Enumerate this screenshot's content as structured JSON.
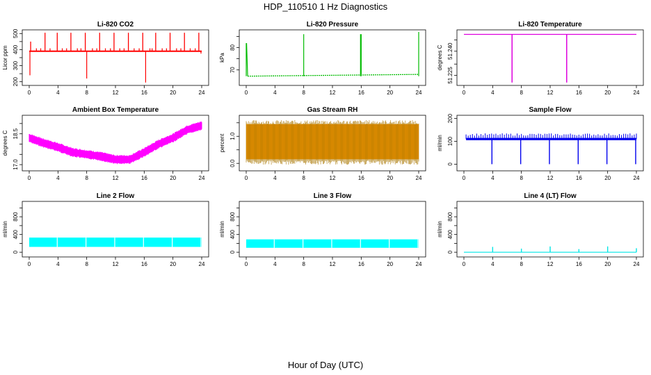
{
  "page": {
    "title": "HDP_110510  1 Hz Diagnostics",
    "xlabel": "Hour of Day (UTC)"
  },
  "chart_data": [
    {
      "type": "line",
      "title": "Li-820 CO2",
      "ylabel": "Licor ppm",
      "color": "#ff0000",
      "xlim": [
        0,
        24
      ],
      "ylim": [
        190,
        510
      ],
      "xticks": [
        0,
        4,
        8,
        12,
        16,
        20,
        24
      ],
      "yticks": [
        200,
        250,
        300,
        350,
        400,
        450,
        500
      ],
      "ytick_labels": [
        "200",
        "",
        "300",
        "",
        "400",
        "",
        "500"
      ],
      "series": [
        {
          "baseline": 390,
          "spikes_up": [
            [
              0.2,
              450
            ],
            [
              2.2,
              505
            ],
            [
              3.9,
              505
            ],
            [
              5.8,
              505
            ],
            [
              7.8,
              505
            ],
            [
              9.8,
              505
            ],
            [
              11.8,
              505
            ],
            [
              13.8,
              505
            ],
            [
              15.8,
              505
            ],
            [
              17.6,
              505
            ],
            [
              19.6,
              505
            ],
            [
              21.6,
              505
            ],
            [
              23.6,
              505
            ]
          ],
          "small_bumps": [
            1.0,
            1.6,
            2.9,
            4.6,
            5.2,
            6.7,
            7.2,
            8.8,
            9.4,
            10.6,
            11.3,
            12.6,
            13.2,
            14.6,
            15.3,
            16.8,
            17.1,
            18.5,
            19.1,
            20.5,
            21.1,
            22.4,
            23.1
          ],
          "dips": [
            [
              0.1,
              240
            ],
            [
              8.0,
              220
            ],
            [
              16.2,
              195
            ],
            [
              23.9,
              375
            ]
          ]
        }
      ]
    },
    {
      "type": "line",
      "title": "Li-820 Pressure",
      "ylabel": "kPa",
      "color": "#00bb00",
      "xlim": [
        0,
        24
      ],
      "ylim": [
        64,
        87
      ],
      "xticks": [
        0,
        4,
        8,
        12,
        16,
        20,
        24
      ],
      "yticks": [
        70,
        75,
        80,
        85
      ],
      "ytick_labels": [
        "70",
        "",
        "80",
        ""
      ],
      "series": [
        {
          "start": [
            0.05,
            82
          ],
          "baseline_start": 67.2,
          "baseline_end": 68.0,
          "spikes": [
            [
              0.0,
              82
            ],
            [
              8.0,
              86
            ],
            [
              15.9,
              86
            ],
            [
              16.0,
              86
            ],
            [
              24.0,
              87
            ]
          ]
        }
      ]
    },
    {
      "type": "line",
      "title": "Li-820 Temperature",
      "ylabel": "degrees C",
      "color": "#dd00dd",
      "xlim": [
        0,
        24
      ],
      "ylim": [
        51.22,
        51.252
      ],
      "xticks": [
        0,
        4,
        8,
        12,
        16,
        20,
        24
      ],
      "yticks": [
        51.225,
        51.232,
        51.24,
        51.247
      ],
      "ytick_labels": [
        "51.225",
        "",
        "51.240",
        ""
      ],
      "series": [
        {
          "baseline": 51.2505,
          "drops": [
            [
              6.7,
              51.2205
            ],
            [
              14.3,
              51.2205
            ]
          ]
        }
      ]
    },
    {
      "type": "area",
      "title": "Ambient Box Temperature",
      "ylabel": "degrees C",
      "color": "#ff00ff",
      "xlim": [
        0,
        24
      ],
      "ylim": [
        16.8,
        19.3
      ],
      "xticks": [
        0,
        4,
        8,
        12,
        16,
        20,
        24
      ],
      "yticks": [
        17.0,
        17.5,
        18.0,
        18.5,
        19.0
      ],
      "ytick_labels": [
        "17.0",
        "",
        "",
        "18.5",
        ""
      ],
      "series": [
        {
          "center": [
            [
              0,
              18.3
            ],
            [
              2,
              18.05
            ],
            [
              4,
              17.85
            ],
            [
              6,
              17.6
            ],
            [
              8,
              17.5
            ],
            [
              10,
              17.4
            ],
            [
              12,
              17.25
            ],
            [
              14,
              17.25
            ],
            [
              16,
              17.6
            ],
            [
              18,
              18.0
            ],
            [
              20,
              18.3
            ],
            [
              22,
              18.7
            ],
            [
              24,
              18.9
            ]
          ],
          "band": 0.45
        }
      ]
    },
    {
      "type": "area",
      "title": "Gas Stream RH",
      "ylabel": "percent",
      "color": "#ff9900",
      "edge_color": "#aa7700",
      "xlim": [
        0,
        24
      ],
      "ylim": [
        -0.2,
        1.7
      ],
      "xticks": [
        0,
        4,
        8,
        12,
        16,
        20,
        24
      ],
      "yticks": [
        0.0,
        0.5,
        1.0,
        1.5
      ],
      "ytick_labels": [
        "0.0",
        "",
        "1.0",
        ""
      ],
      "series": [
        {
          "low": 0.15,
          "high": 1.45
        }
      ]
    },
    {
      "type": "line",
      "title": "Sample Flow",
      "ylabel": "ml/min",
      "color": "#0000ee",
      "xlim": [
        0,
        24
      ],
      "ylim": [
        -20,
        205
      ],
      "xticks": [
        0,
        4,
        8,
        12,
        16,
        20,
        24
      ],
      "yticks": [
        0,
        100,
        200
      ],
      "ytick_labels": [
        "0",
        "100",
        "200"
      ],
      "series": [
        {
          "baseline": 110,
          "band_top": 125,
          "dips": [
            [
              3.9,
              0
            ],
            [
              7.9,
              0
            ],
            [
              11.9,
              0
            ],
            [
              15.9,
              0
            ],
            [
              19.9,
              0
            ],
            [
              23.9,
              0
            ]
          ]
        }
      ]
    },
    {
      "type": "area",
      "title": "Line 2 Flow",
      "ylabel": "ml/min",
      "color": "#00ffff",
      "xlim": [
        0,
        24
      ],
      "ylim": [
        -60,
        1100
      ],
      "xticks": [
        0,
        4,
        8,
        12,
        16,
        20,
        24
      ],
      "yticks": [
        0,
        200,
        400,
        600,
        800,
        1000
      ],
      "ytick_labels": [
        "0",
        "",
        "400",
        "",
        "800",
        ""
      ],
      "series": [
        {
          "low": 120,
          "high": 330,
          "gaps": [
            3.9,
            7.9,
            11.9,
            15.9,
            19.9,
            23.9
          ]
        }
      ]
    },
    {
      "type": "area",
      "title": "Line 3 Flow",
      "ylabel": "ml/min",
      "color": "#00ffff",
      "xlim": [
        0,
        24
      ],
      "ylim": [
        -60,
        1100
      ],
      "xticks": [
        0,
        4,
        8,
        12,
        16,
        20,
        24
      ],
      "yticks": [
        0,
        200,
        400,
        600,
        800,
        1000
      ],
      "ytick_labels": [
        "0",
        "",
        "400",
        "",
        "800",
        ""
      ],
      "series": [
        {
          "low": 100,
          "high": 290,
          "gaps": [
            3.9,
            7.9,
            11.9,
            15.9,
            19.9,
            23.9
          ]
        }
      ]
    },
    {
      "type": "line",
      "title": "Line 4 (LT) Flow",
      "ylabel": "ml/min",
      "color": "#00e5e5",
      "xlim": [
        0,
        24
      ],
      "ylim": [
        -60,
        1100
      ],
      "xticks": [
        0,
        4,
        8,
        12,
        16,
        20,
        24
      ],
      "yticks": [
        0,
        200,
        400,
        600,
        800,
        1000
      ],
      "ytick_labels": [
        "0",
        "",
        "400",
        "",
        "800",
        ""
      ],
      "series": [
        {
          "baseline": 0,
          "spikes": [
            [
              4.0,
              120
            ],
            [
              8.0,
              80
            ],
            [
              12.0,
              130
            ],
            [
              16.0,
              70
            ],
            [
              20.0,
              130
            ],
            [
              24.0,
              90
            ]
          ]
        }
      ]
    }
  ]
}
